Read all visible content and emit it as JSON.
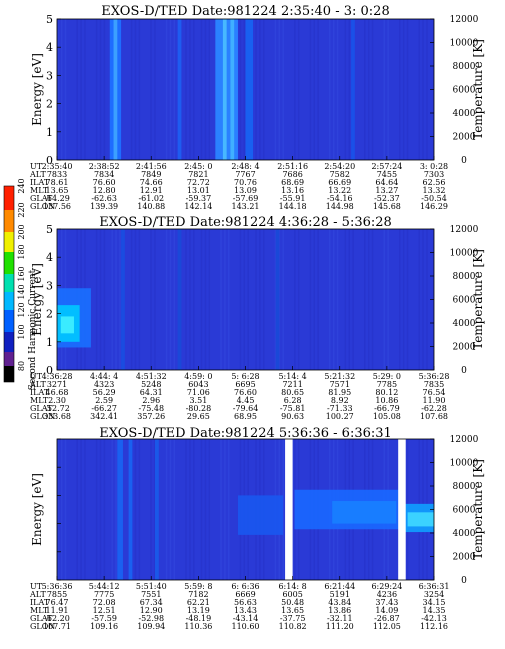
{
  "colorbar": {
    "label": "Second Harmonic Current",
    "ticks": [
      "240",
      "220",
      "200",
      "180",
      "160",
      "140",
      "120",
      "100",
      "80"
    ]
  },
  "chart_data": [
    {
      "type": "heatmap",
      "title": "EXOS-D/TED   Date:981224  2:35:40 - 3: 0:28",
      "ylabel": "Energy [eV]",
      "y2label": "Temperature [K]",
      "ylim": [
        0,
        5
      ],
      "y2lim": [
        0,
        12000
      ],
      "yticks": [
        "0",
        "1",
        "2",
        "3",
        "4",
        "5"
      ],
      "y2ticks": [
        "0",
        "2000",
        "4000",
        "6000",
        "8000",
        "10000",
        "12000"
      ],
      "xticks": [
        "2:35:40",
        "2:38:52",
        "2:41:56",
        "2:45: 0",
        "2:48: 4",
        "2:51:16",
        "2:54:20",
        "2:57:24",
        "3: 0:28"
      ],
      "params": [
        {
          "name": "UT",
          "values": [
            "2:35:40",
            "2:38:52",
            "2:41:56",
            "2:45: 0",
            "2:48: 4",
            "2:51:16",
            "2:54:20",
            "2:57:24",
            "3: 0:28"
          ]
        },
        {
          "name": "ALT",
          "values": [
            "7833",
            "7834",
            "7849",
            "7821",
            "7767",
            "7686",
            "7582",
            "7455",
            "7303"
          ]
        },
        {
          "name": "ILAT",
          "values": [
            "78.61",
            "76.60",
            "74.66",
            "72.72",
            "70.76",
            "68.69",
            "66.69",
            "64.64",
            "62.56"
          ]
        },
        {
          "name": "MLT",
          "values": [
            "13.65",
            "12.80",
            "12.91",
            "13.01",
            "13.09",
            "13.16",
            "13.22",
            "13.27",
            "13.32"
          ]
        },
        {
          "name": "GLAT",
          "values": [
            "-64.29",
            "-62.63",
            "-61.02",
            "-59.37",
            "-57.69",
            "-55.91",
            "-54.16",
            "-52.37",
            "-50.54"
          ]
        },
        {
          "name": "GLON",
          "values": [
            "137.56",
            "139.39",
            "140.88",
            "142.14",
            "143.21",
            "144.18",
            "144.98",
            "145.68",
            "146.29"
          ]
        }
      ]
    },
    {
      "type": "heatmap",
      "title": "EXOS-D/TED   Date:981224  4:36:28 - 5:36:28",
      "ylabel": "Energy [eV]",
      "y2label": "Temperature [K]",
      "ylim": [
        0,
        5
      ],
      "y2lim": [
        0,
        12000
      ],
      "yticks": [
        "0",
        "1",
        "2",
        "3",
        "4",
        "5"
      ],
      "y2ticks": [
        "0",
        "2000",
        "4000",
        "6000",
        "8000",
        "10000",
        "12000"
      ],
      "xticks": [
        "4:36:28",
        "4:44: 4",
        "4:51:32",
        "4:59: 0",
        "5: 6:28",
        "5:14: 4",
        "5:21:32",
        "5:29: 0",
        "5:36:28"
      ],
      "params": [
        {
          "name": "UT",
          "values": [
            "4:36:28",
            "4:44: 4",
            "4:51:32",
            "4:59: 0",
            "5: 6:28",
            "5:14: 4",
            "5:21:32",
            "5:29: 0",
            "5:36:28"
          ]
        },
        {
          "name": "ALT",
          "values": [
            "3271",
            "4323",
            "5248",
            "6043",
            "6695",
            "7211",
            "7571",
            "7785",
            "7835"
          ]
        },
        {
          "name": "ILAT",
          "values": [
            "46.68",
            "56.29",
            "64.31",
            "71.06",
            "76.60",
            "80.65",
            "81.95",
            "80.12",
            "76.54"
          ]
        },
        {
          "name": "MLT",
          "values": [
            "2.30",
            "2.59",
            "2.96",
            "3.51",
            "4.45",
            "6.28",
            "8.92",
            "10.86",
            "11.90"
          ]
        },
        {
          "name": "GLAT",
          "values": [
            "-52.72",
            "-66.27",
            "-75.48",
            "-80.28",
            "-79.64",
            "-75.81",
            "-71.33",
            "-66.79",
            "-62.28"
          ]
        },
        {
          "name": "GLON",
          "values": [
            "333.68",
            "342.41",
            "357.26",
            "29.65",
            "68.95",
            "90.63",
            "100.27",
            "105.08",
            "107.68"
          ]
        }
      ]
    },
    {
      "type": "heatmap",
      "title": "EXOS-D/TED   Date:981224  5:36:36 - 6:36:31",
      "ylabel": "Energy [eV]",
      "y2label": "Temperature [K]",
      "ylim": [
        0,
        5
      ],
      "y2lim": [
        0,
        12000
      ],
      "yticks": [],
      "y2ticks": [
        "0",
        "2000",
        "4000",
        "6000",
        "8000",
        "10000",
        "12000"
      ],
      "xticks": [
        "5:36:36",
        "5:44:12",
        "5:51:40",
        "5:59: 8",
        "6: 6:36",
        "6:14: 8",
        "6:21:44",
        "6:29:24",
        "6:36:31"
      ],
      "params": [
        {
          "name": "UT",
          "values": [
            "5:36:36",
            "5:44:12",
            "5:51:40",
            "5:59: 8",
            "6: 6:36",
            "6:14: 8",
            "6:21:44",
            "6:29:24",
            "6:36:31"
          ]
        },
        {
          "name": "ALT",
          "values": [
            "7855",
            "7775",
            "7551",
            "7182",
            "6669",
            "6005",
            "5191",
            "4236",
            "3254"
          ]
        },
        {
          "name": "ILAT",
          "values": [
            "76.47",
            "72.08",
            "67.34",
            "62.21",
            "56.63",
            "50.48",
            "43.84",
            "37.43",
            "34.15"
          ]
        },
        {
          "name": "MLT",
          "values": [
            "11.91",
            "12.51",
            "12.90",
            "13.19",
            "13.43",
            "13.65",
            "13.86",
            "14.09",
            "14.35"
          ]
        },
        {
          "name": "GLAT",
          "values": [
            "-62.20",
            "-57.59",
            "-52.98",
            "-48.19",
            "-43.14",
            "-37.75",
            "-32.11",
            "-26.87",
            "-42.13"
          ]
        },
        {
          "name": "GLON",
          "values": [
            "107.71",
            "109.16",
            "109.94",
            "110.36",
            "110.60",
            "110.82",
            "111.20",
            "112.05",
            "112.16"
          ]
        }
      ]
    }
  ]
}
